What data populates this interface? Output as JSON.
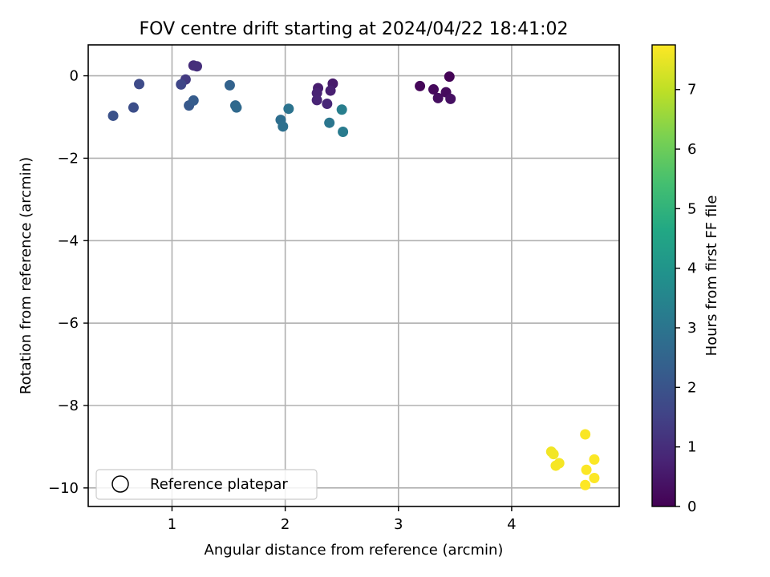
{
  "chart_data": {
    "type": "scatter",
    "title": "FOV centre drift starting at 2024/04/22 18:41:02",
    "xlabel": "Angular distance from reference (arcmin)",
    "ylabel": "Rotation from reference (arcmin)",
    "xlim": [
      0.26,
      4.95
    ],
    "ylim": [
      -10.45,
      0.75
    ],
    "xticks": [
      1,
      2,
      3,
      4
    ],
    "yticks": [
      0,
      -2,
      -4,
      -6,
      -8,
      -10
    ],
    "grid": true,
    "legend": {
      "position": "lower-left",
      "label": "Reference platepar",
      "marker": "open-circle"
    },
    "colorbar": {
      "label": "Hours from first FF file",
      "min": 0,
      "max": 7.75,
      "ticks": [
        0,
        1,
        2,
        3,
        4,
        5,
        6,
        7
      ],
      "colormap": "viridis"
    },
    "points": [
      {
        "x": 3.45,
        "y": -0.02,
        "h": 0.05
      },
      {
        "x": 3.19,
        "y": -0.25,
        "h": 0.12
      },
      {
        "x": 3.31,
        "y": -0.33,
        "h": 0.18
      },
      {
        "x": 3.42,
        "y": -0.4,
        "h": 0.22
      },
      {
        "x": 3.35,
        "y": -0.54,
        "h": 0.28
      },
      {
        "x": 3.46,
        "y": -0.56,
        "h": 0.33
      },
      {
        "x": 2.42,
        "y": -0.19,
        "h": 0.55
      },
      {
        "x": 2.29,
        "y": -0.3,
        "h": 0.62
      },
      {
        "x": 2.4,
        "y": -0.36,
        "h": 0.68
      },
      {
        "x": 2.28,
        "y": -0.42,
        "h": 0.72
      },
      {
        "x": 2.28,
        "y": -0.59,
        "h": 0.78
      },
      {
        "x": 2.37,
        "y": -0.68,
        "h": 0.85
      },
      {
        "x": 1.19,
        "y": 0.25,
        "h": 1.0
      },
      {
        "x": 1.22,
        "y": 0.23,
        "h": 1.05
      },
      {
        "x": 1.12,
        "y": -0.09,
        "h": 1.3
      },
      {
        "x": 1.08,
        "y": -0.21,
        "h": 1.65
      },
      {
        "x": 0.71,
        "y": -0.2,
        "h": 1.75
      },
      {
        "x": 0.66,
        "y": -0.77,
        "h": 1.85
      },
      {
        "x": 0.48,
        "y": -0.97,
        "h": 1.95
      },
      {
        "x": 1.15,
        "y": -0.72,
        "h": 2.15
      },
      {
        "x": 1.19,
        "y": -0.6,
        "h": 2.25
      },
      {
        "x": 1.51,
        "y": -0.23,
        "h": 2.45
      },
      {
        "x": 1.56,
        "y": -0.72,
        "h": 2.6
      },
      {
        "x": 1.57,
        "y": -0.77,
        "h": 2.65
      },
      {
        "x": 1.96,
        "y": -1.07,
        "h": 2.8
      },
      {
        "x": 1.98,
        "y": -1.23,
        "h": 2.85
      },
      {
        "x": 2.03,
        "y": -0.8,
        "h": 2.95
      },
      {
        "x": 2.39,
        "y": -1.14,
        "h": 3.05
      },
      {
        "x": 2.51,
        "y": -1.36,
        "h": 3.2
      },
      {
        "x": 2.5,
        "y": -0.82,
        "h": 3.3
      },
      {
        "x": 4.35,
        "y": -9.12,
        "h": 7.6
      },
      {
        "x": 4.37,
        "y": -9.18,
        "h": 7.62
      },
      {
        "x": 4.42,
        "y": -9.4,
        "h": 7.65
      },
      {
        "x": 4.39,
        "y": -9.46,
        "h": 7.66
      },
      {
        "x": 4.65,
        "y": -8.7,
        "h": 7.7
      },
      {
        "x": 4.73,
        "y": -9.31,
        "h": 7.72
      },
      {
        "x": 4.66,
        "y": -9.56,
        "h": 7.73
      },
      {
        "x": 4.73,
        "y": -9.76,
        "h": 7.74
      },
      {
        "x": 4.65,
        "y": -9.93,
        "h": 7.75
      }
    ]
  }
}
